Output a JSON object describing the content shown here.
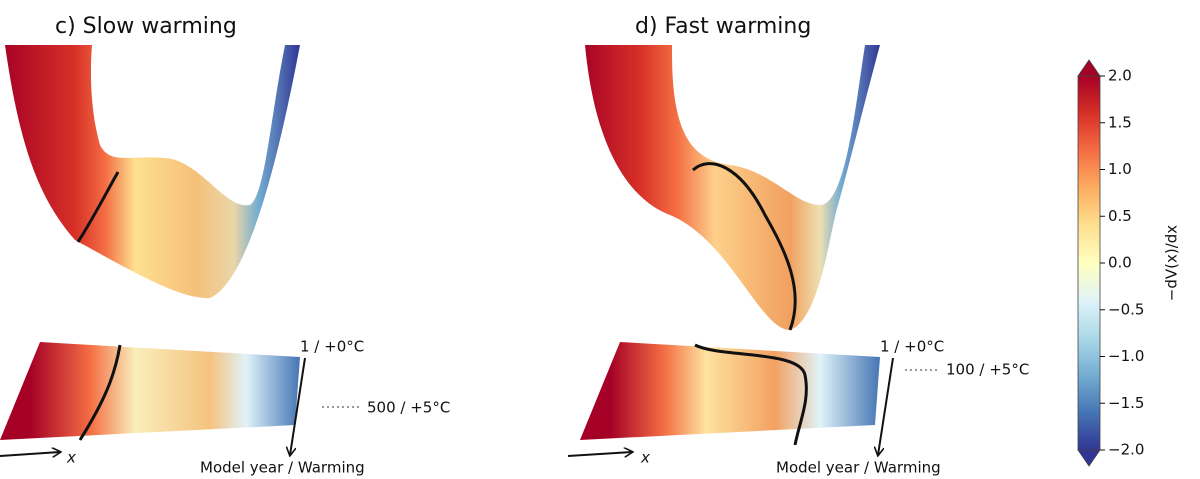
{
  "panels": [
    {
      "title": "c) Slow warming",
      "x_axis": "x",
      "time_start": "1 / +0°C",
      "time_end": "500 / +5°C",
      "time_axis": "Model year / Warming"
    },
    {
      "title": "d) Fast warming",
      "x_axis": "x",
      "time_start": "1 / +0°C",
      "time_end": "100 / +5°C",
      "time_axis": "Model year / Warming"
    }
  ],
  "colorbar": {
    "label": "−dV(x)/dx",
    "lim": [
      -2,
      2
    ],
    "ticks": [
      {
        "value": -2,
        "label": "−2.0"
      },
      {
        "value": -1.5,
        "label": "−1.5"
      },
      {
        "value": -1,
        "label": "−1.0"
      },
      {
        "value": -0.5,
        "label": "−0.5"
      },
      {
        "value": 0,
        "label": "0.0"
      },
      {
        "value": 0.5,
        "label": "0.5"
      },
      {
        "value": 1,
        "label": "1.0"
      },
      {
        "value": 1.5,
        "label": "1.5"
      },
      {
        "value": 2,
        "label": "2.0"
      }
    ],
    "colors": [
      "#313695",
      "#4575b4",
      "#74add1",
      "#abd9e9",
      "#e0f3f8",
      "#ffffbf",
      "#fee090",
      "#fdae61",
      "#f46d43",
      "#d73027",
      "#a50026"
    ]
  }
}
